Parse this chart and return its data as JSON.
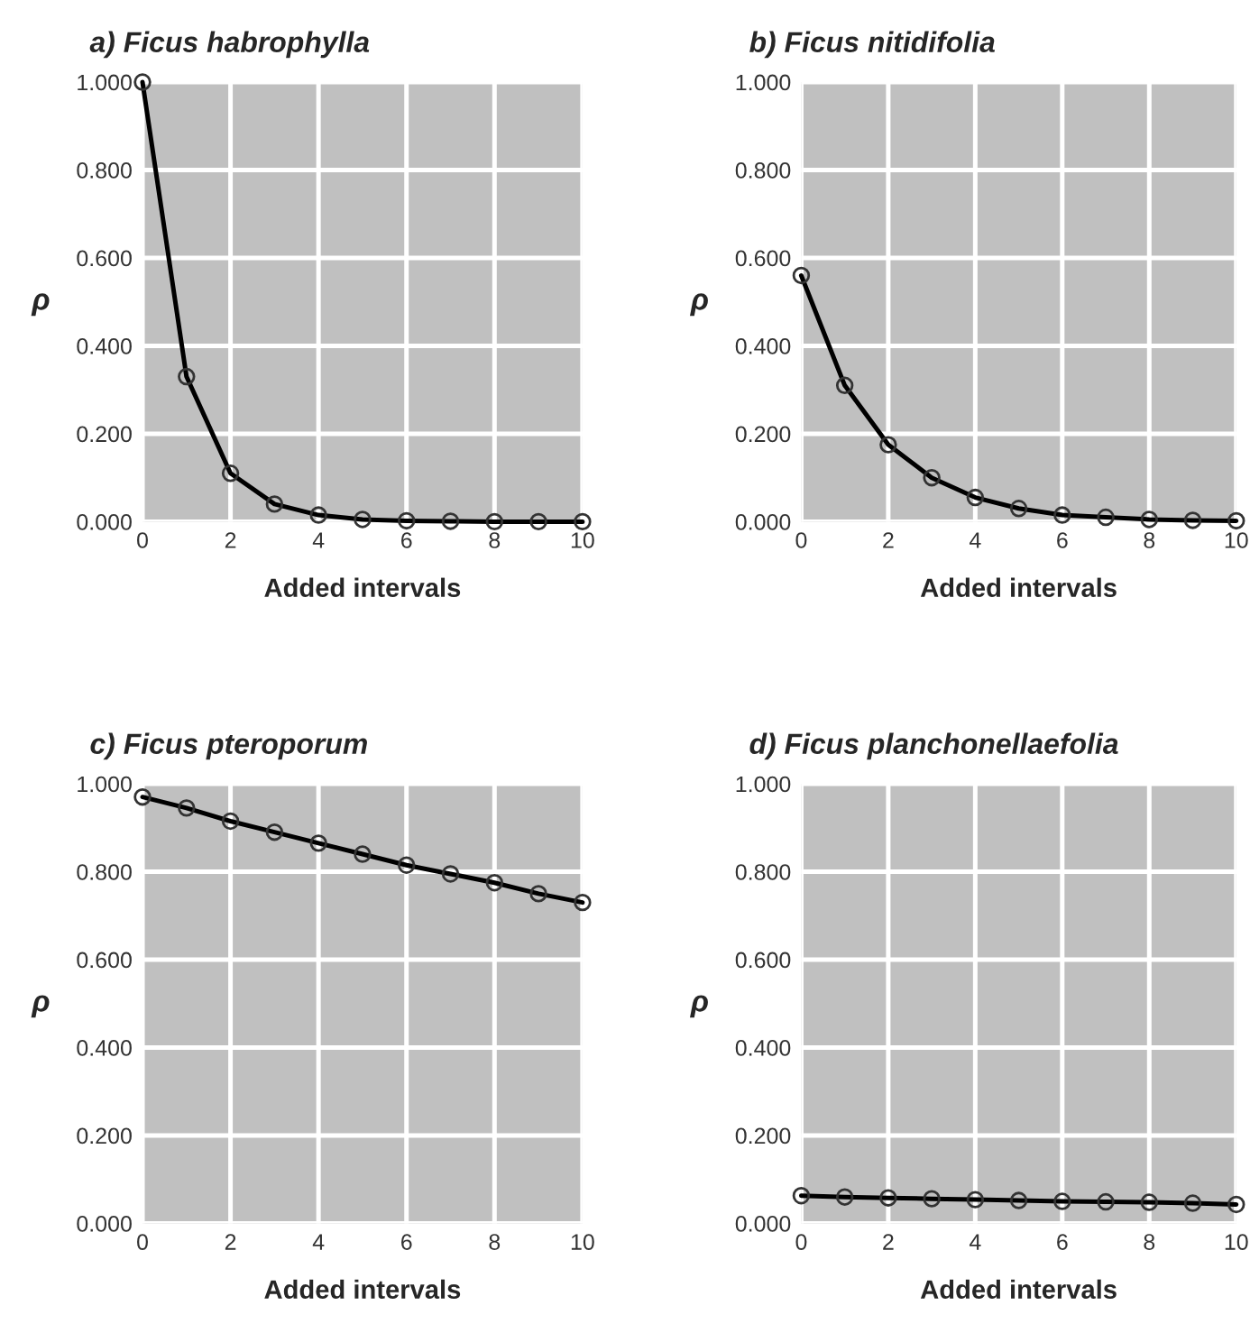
{
  "chart_data": [
    {
      "type": "line",
      "title": "a) Ficus habrophylla",
      "xlabel": "Added intervals",
      "ylabel": "ρ",
      "x": [
        0,
        1,
        2,
        3,
        4,
        5,
        6,
        7,
        8,
        9,
        10
      ],
      "series": [
        {
          "color": "#000000",
          "values": [
            1.0,
            0.33,
            0.11,
            0.04,
            0.015,
            0.005,
            0.002,
            0.001,
            0.0,
            0.0,
            0.0
          ]
        }
      ],
      "xlim": [
        0,
        10
      ],
      "ylim": [
        0,
        1
      ],
      "xticks": [
        0,
        2,
        4,
        6,
        8,
        10
      ],
      "yticks": [
        {
          "value": 0,
          "label": "0.000"
        },
        {
          "value": 0.2,
          "label": "0.200"
        },
        {
          "value": 0.4,
          "label": "0.400"
        },
        {
          "value": 0.6,
          "label": "0.600"
        },
        {
          "value": 0.8,
          "label": "0.800"
        },
        {
          "value": 1,
          "label": "1.000"
        }
      ],
      "grid": true,
      "marker": "circle",
      "line_style": "solid"
    },
    {
      "type": "line",
      "title": "b) Ficus nitidifolia",
      "xlabel": "Added intervals",
      "ylabel": "ρ",
      "x": [
        0,
        1,
        2,
        3,
        4,
        5,
        6,
        7,
        8,
        9,
        10
      ],
      "series": [
        {
          "color": "#000000",
          "values": [
            0.56,
            0.31,
            0.175,
            0.1,
            0.055,
            0.03,
            0.015,
            0.01,
            0.005,
            0.003,
            0.002
          ]
        }
      ],
      "xlim": [
        0,
        10
      ],
      "ylim": [
        0,
        1
      ],
      "xticks": [
        0,
        2,
        4,
        6,
        8,
        10
      ],
      "yticks": [
        {
          "value": 0,
          "label": "0.000"
        },
        {
          "value": 0.2,
          "label": "0.200"
        },
        {
          "value": 0.4,
          "label": "0.400"
        },
        {
          "value": 0.6,
          "label": "0.600"
        },
        {
          "value": 0.8,
          "label": "0.800"
        },
        {
          "value": 1,
          "label": "1.000"
        }
      ],
      "grid": true,
      "marker": "circle",
      "line_style": "solid"
    },
    {
      "type": "line",
      "title": "c) Ficus pteroporum",
      "xlabel": "Added intervals",
      "ylabel": "ρ",
      "x": [
        0,
        1,
        2,
        3,
        4,
        5,
        6,
        7,
        8,
        9,
        10
      ],
      "series": [
        {
          "color": "#000000",
          "values": [
            0.97,
            0.945,
            0.915,
            0.89,
            0.865,
            0.84,
            0.815,
            0.795,
            0.775,
            0.75,
            0.73
          ]
        }
      ],
      "xlim": [
        0,
        10
      ],
      "ylim": [
        0,
        1
      ],
      "xticks": [
        0,
        2,
        4,
        6,
        8,
        10
      ],
      "yticks": [
        {
          "value": 0,
          "label": "0.000"
        },
        {
          "value": 0.2,
          "label": "0.200"
        },
        {
          "value": 0.4,
          "label": "0.400"
        },
        {
          "value": 0.6,
          "label": "0.600"
        },
        {
          "value": 0.8,
          "label": "0.800"
        },
        {
          "value": 1,
          "label": "1.000"
        }
      ],
      "grid": true,
      "marker": "circle",
      "line_style": "solid"
    },
    {
      "type": "line",
      "title": "d) Ficus planchonellaefolia",
      "xlabel": "Added intervals",
      "ylabel": "ρ",
      "x": [
        0,
        1,
        2,
        3,
        4,
        5,
        6,
        7,
        8,
        9,
        10
      ],
      "series": [
        {
          "color": "#000000",
          "values": [
            0.063,
            0.06,
            0.058,
            0.056,
            0.054,
            0.052,
            0.05,
            0.049,
            0.048,
            0.046,
            0.043
          ]
        }
      ],
      "xlim": [
        0,
        10
      ],
      "ylim": [
        0,
        1
      ],
      "xticks": [
        0,
        2,
        4,
        6,
        8,
        10
      ],
      "yticks": [
        {
          "value": 0,
          "label": "0.000"
        },
        {
          "value": 0.2,
          "label": "0.200"
        },
        {
          "value": 0.4,
          "label": "0.400"
        },
        {
          "value": 0.6,
          "label": "0.600"
        },
        {
          "value": 0.8,
          "label": "0.800"
        },
        {
          "value": 1,
          "label": "1.000"
        }
      ],
      "grid": true,
      "marker": "circle",
      "line_style": "solid"
    }
  ]
}
